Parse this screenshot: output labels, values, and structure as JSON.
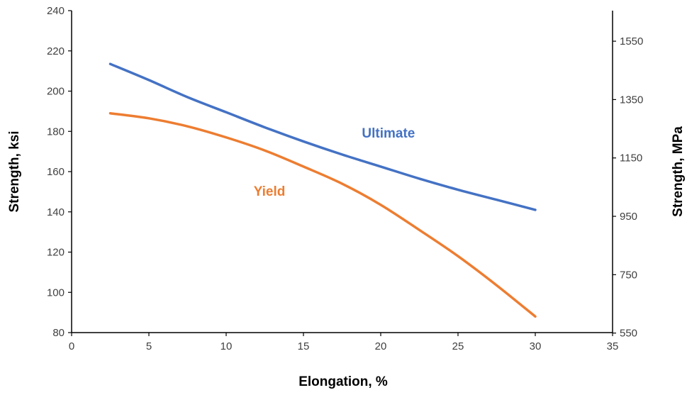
{
  "chart_data": {
    "type": "line",
    "title": "",
    "xlabel": "Elongation, %",
    "ylabel": "Strength, ksi",
    "y2label": "Strength, MPa",
    "xlim": [
      0,
      35
    ],
    "ylim": [
      80,
      240
    ],
    "y2lim": [
      551.6,
      1654.7
    ],
    "x_ticks": [
      0,
      5,
      10,
      15,
      20,
      25,
      30,
      35
    ],
    "y_ticks": [
      80,
      100,
      120,
      140,
      160,
      180,
      200,
      220,
      240
    ],
    "y2_ticks": [
      550,
      750,
      950,
      1150,
      1350,
      1550
    ],
    "grid": false,
    "legend": "none",
    "series": [
      {
        "name": "Ultimate",
        "color": "#4472C4",
        "x": [
          2.5,
          5,
          7.5,
          10,
          12.5,
          15,
          17.5,
          20,
          22.5,
          25,
          27.5,
          30
        ],
        "y": [
          213.5,
          205.5,
          197,
          189.5,
          182,
          175,
          168.5,
          162.5,
          156.5,
          151,
          146,
          141
        ]
      },
      {
        "name": "Yield",
        "color": "#ED7D31",
        "x": [
          2.5,
          5,
          7.5,
          10,
          12.5,
          15,
          17.5,
          20,
          22.5,
          25,
          27.5,
          30
        ],
        "y": [
          189,
          186.5,
          182.5,
          177,
          170.5,
          162.5,
          154,
          143.5,
          131,
          118,
          103.5,
          88
        ]
      }
    ],
    "annotations": [
      {
        "text": "Ultimate",
        "x": 20.5,
        "y": 177,
        "color": "#4472C4"
      },
      {
        "text": "Yield",
        "x": 12.8,
        "y": 148,
        "color": "#ED7D31"
      }
    ]
  }
}
